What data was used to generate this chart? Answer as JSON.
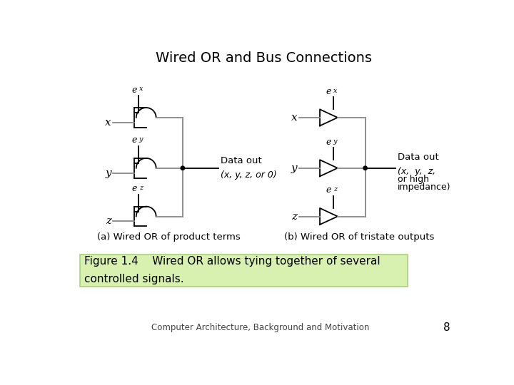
{
  "title": "Wired OR and Bus Connections",
  "title_fontsize": 14,
  "caption_bg": "#d8f0b0",
  "caption_border": "#aad080",
  "footer_text": "Computer Architecture, Background and Motivation",
  "footer_page": "8",
  "label_a": "(a) Wired OR of product terms",
  "label_b": "(b) Wired OR of tristate outputs",
  "bg_color": "#ffffff",
  "lw": 1.3
}
